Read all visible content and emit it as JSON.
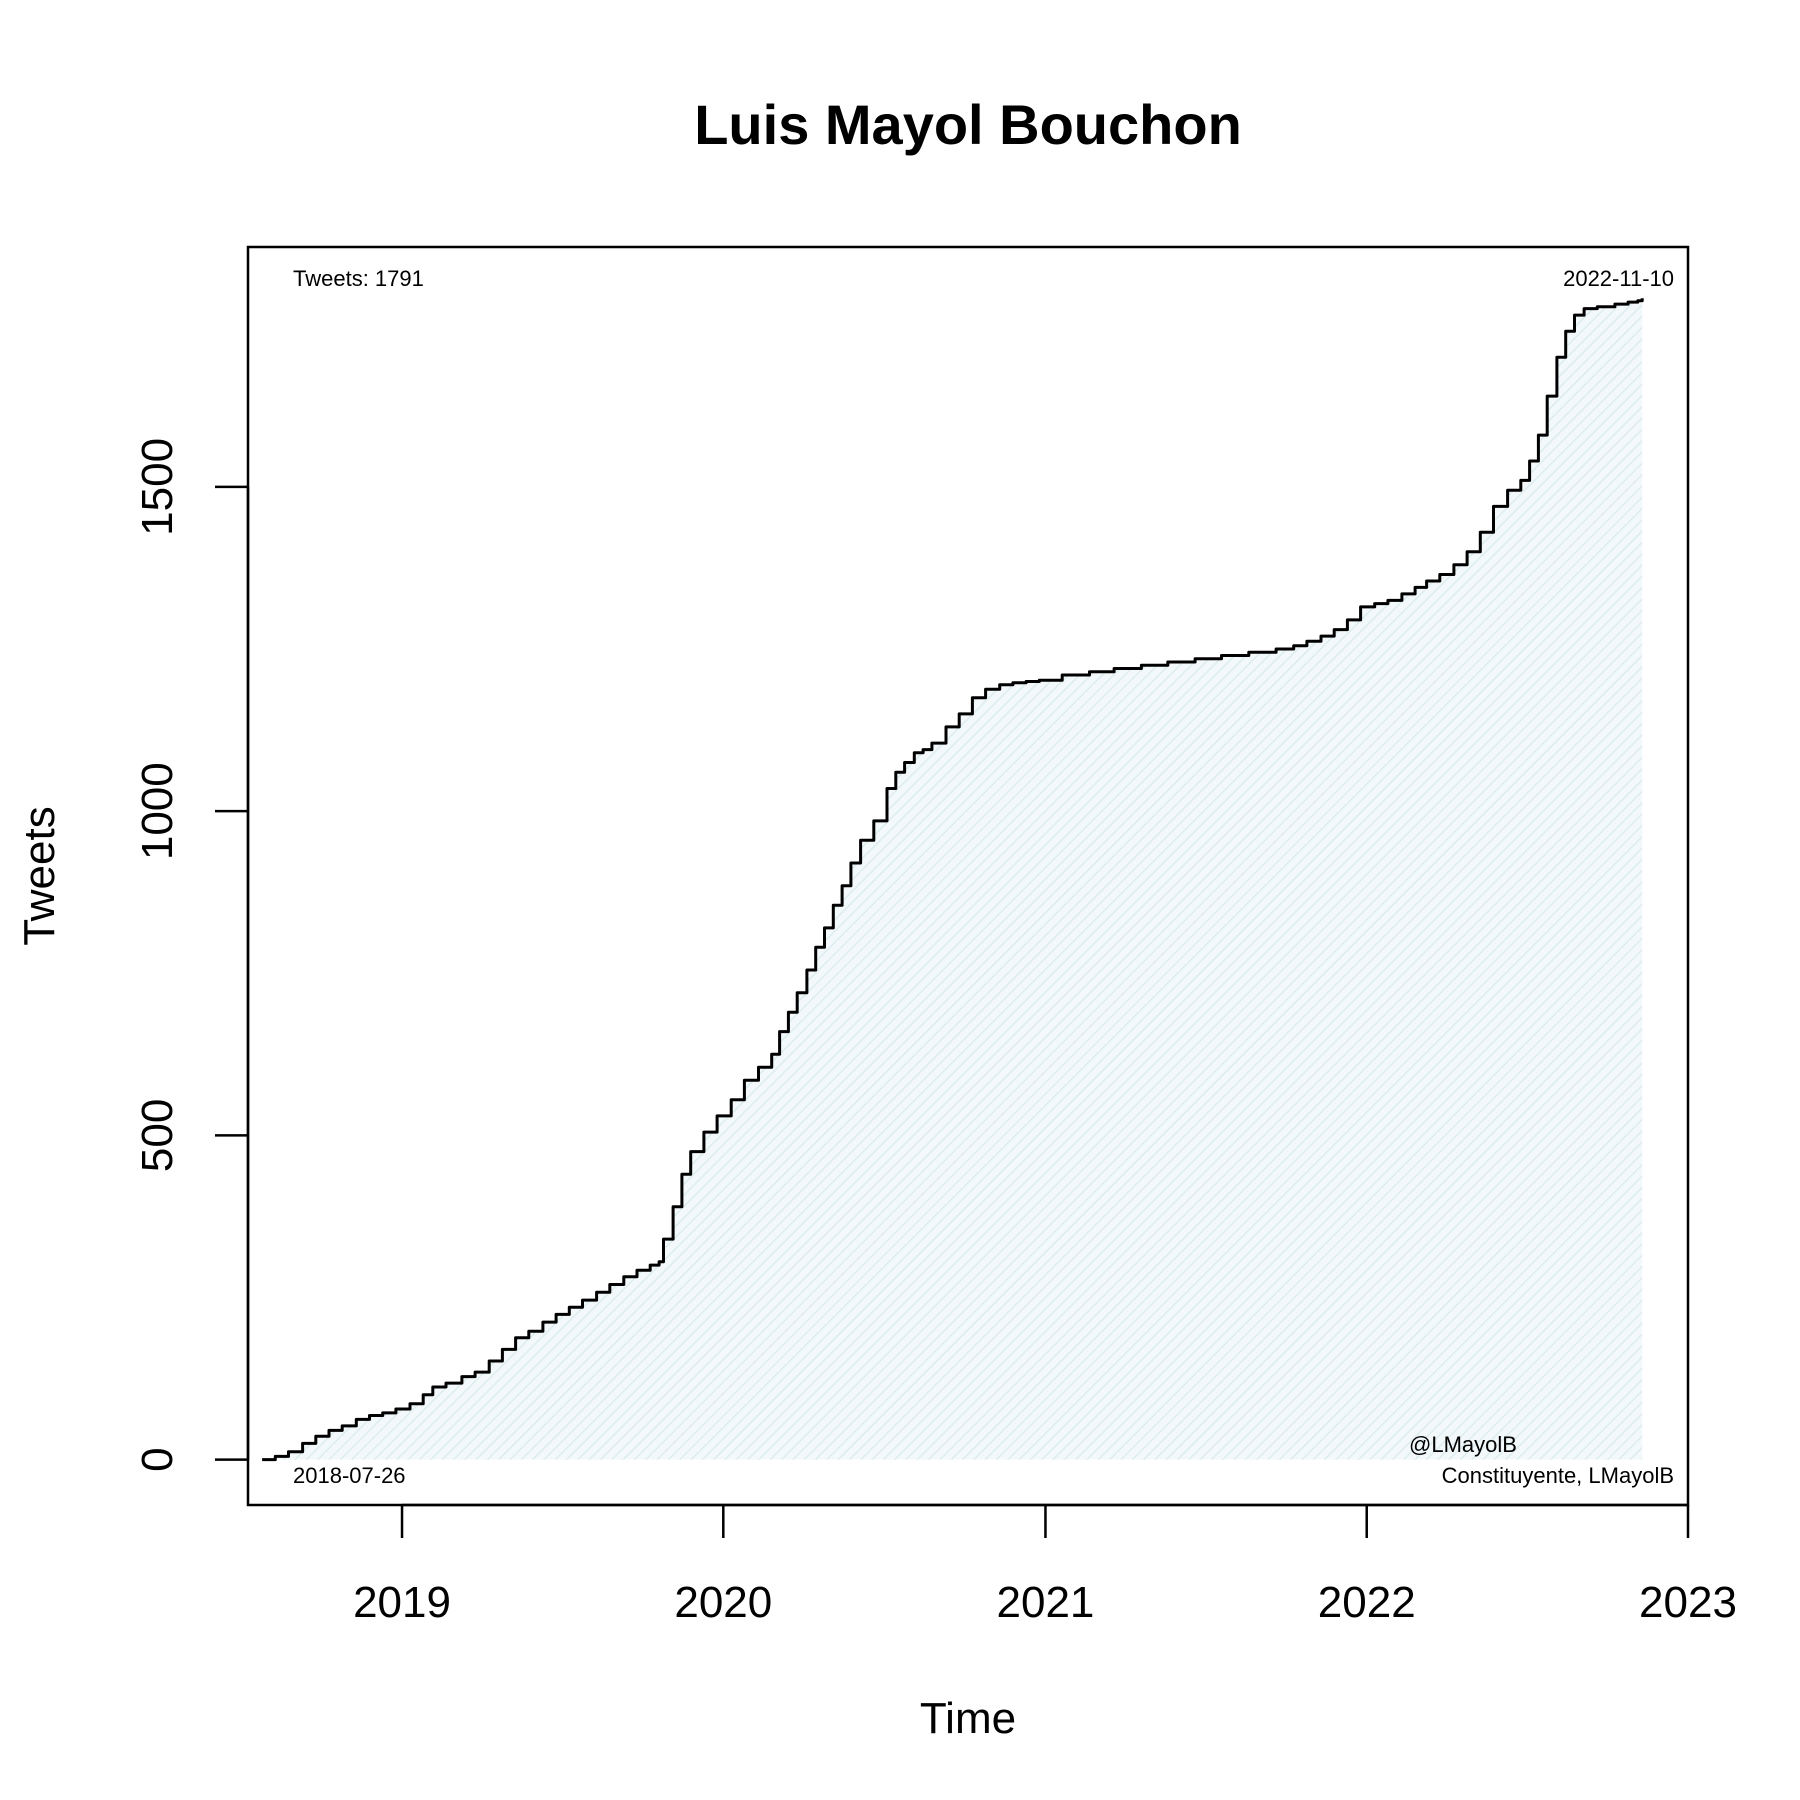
{
  "chart_data": {
    "type": "area",
    "title": "Luis Mayol Bouchon",
    "xlabel": "Time",
    "ylabel": "Tweets",
    "xlim": [
      "2018-07-10",
      "2023-01-01"
    ],
    "ylim": [
      -70,
      1870
    ],
    "x_ticks": [
      "2019-01-01",
      "2020-01-01",
      "2021-01-01",
      "2022-01-01",
      "2023-01-01"
    ],
    "x_tick_labels": [
      "2019",
      "2020",
      "2021",
      "2022",
      "2023"
    ],
    "y_ticks": [
      0,
      500,
      1000,
      1500
    ],
    "y_tick_labels": [
      "0",
      "500",
      "1000",
      "1500"
    ],
    "grid": false,
    "line_color": "#000000",
    "fill_color": "#e4f1f3",
    "annotations": {
      "tweets_count": "Tweets: 1791",
      "end_date": "2022-11-10",
      "start_date": "2018-07-26",
      "handle": "@LMayolB",
      "description": "Constituyente, LMayolB"
    },
    "series": [
      {
        "x": [
          "2018-07-26",
          "2018-08-10",
          "2018-08-25",
          "2018-09-10",
          "2018-09-25",
          "2018-10-10",
          "2018-10-25",
          "2018-11-10",
          "2018-11-25",
          "2018-12-10",
          "2018-12-25",
          "2019-01-10",
          "2019-01-25",
          "2019-02-05",
          "2019-02-20",
          "2019-03-10",
          "2019-03-25",
          "2019-04-10",
          "2019-04-25",
          "2019-05-10",
          "2019-05-25",
          "2019-06-10",
          "2019-06-25",
          "2019-07-10",
          "2019-07-25",
          "2019-08-10",
          "2019-08-25",
          "2019-09-10",
          "2019-09-25",
          "2019-10-10",
          "2019-10-20",
          "2019-10-25",
          "2019-11-05",
          "2019-11-15",
          "2019-11-25",
          "2019-12-10",
          "2019-12-25",
          "2020-01-10",
          "2020-01-25",
          "2020-02-10",
          "2020-02-25",
          "2020-03-05",
          "2020-03-15",
          "2020-03-25",
          "2020-04-05",
          "2020-04-15",
          "2020-04-25",
          "2020-05-05",
          "2020-05-15",
          "2020-05-25",
          "2020-06-05",
          "2020-06-20",
          "2020-07-05",
          "2020-07-15",
          "2020-07-25",
          "2020-08-05",
          "2020-08-15",
          "2020-08-25",
          "2020-09-10",
          "2020-09-25",
          "2020-10-10",
          "2020-10-25",
          "2020-11-10",
          "2020-11-25",
          "2020-12-10",
          "2020-12-25",
          "2021-01-20",
          "2021-02-20",
          "2021-03-20",
          "2021-04-20",
          "2021-05-20",
          "2021-06-20",
          "2021-07-20",
          "2021-08-20",
          "2021-09-20",
          "2021-10-10",
          "2021-10-25",
          "2021-11-10",
          "2021-11-25",
          "2021-12-10",
          "2021-12-25",
          "2022-01-10",
          "2022-01-25",
          "2022-02-10",
          "2022-02-25",
          "2022-03-10",
          "2022-03-25",
          "2022-04-10",
          "2022-04-25",
          "2022-05-10",
          "2022-05-25",
          "2022-06-10",
          "2022-06-25",
          "2022-07-05",
          "2022-07-15",
          "2022-07-25",
          "2022-08-05",
          "2022-08-15",
          "2022-08-25",
          "2022-09-05",
          "2022-09-20",
          "2022-10-10",
          "2022-10-25",
          "2022-11-05",
          "2022-11-10"
        ],
        "y": [
          0,
          5,
          12,
          25,
          36,
          45,
          52,
          62,
          68,
          72,
          78,
          86,
          100,
          112,
          118,
          128,
          135,
          152,
          170,
          188,
          198,
          212,
          224,
          235,
          246,
          258,
          270,
          282,
          292,
          300,
          305,
          340,
          390,
          440,
          475,
          505,
          530,
          555,
          585,
          605,
          625,
          660,
          690,
          720,
          755,
          790,
          820,
          855,
          885,
          920,
          955,
          985,
          1035,
          1060,
          1075,
          1090,
          1095,
          1105,
          1130,
          1150,
          1175,
          1188,
          1195,
          1198,
          1200,
          1202,
          1210,
          1215,
          1220,
          1225,
          1230,
          1235,
          1240,
          1245,
          1250,
          1255,
          1262,
          1270,
          1280,
          1295,
          1315,
          1320,
          1325,
          1335,
          1345,
          1355,
          1365,
          1380,
          1400,
          1430,
          1470,
          1495,
          1510,
          1540,
          1580,
          1640,
          1700,
          1740,
          1765,
          1775,
          1778,
          1782,
          1785,
          1787,
          1791
        ]
      }
    ]
  }
}
